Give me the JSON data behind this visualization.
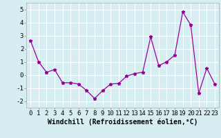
{
  "x": [
    0,
    1,
    2,
    3,
    4,
    5,
    6,
    7,
    8,
    9,
    10,
    11,
    12,
    13,
    14,
    15,
    16,
    17,
    18,
    19,
    20,
    21,
    22,
    23
  ],
  "y": [
    2.6,
    1.0,
    0.2,
    0.4,
    -0.6,
    -0.6,
    -0.7,
    -1.2,
    -1.8,
    -1.2,
    -0.7,
    -0.65,
    -0.1,
    0.1,
    0.2,
    2.9,
    0.7,
    1.0,
    1.5,
    4.8,
    3.8,
    -1.4,
    0.5,
    -0.7
  ],
  "line_color": "#990099",
  "marker": "*",
  "markersize": 3.5,
  "linewidth": 0.9,
  "xlabel": "Windchill (Refroidissement éolien,°C)",
  "xlabel_fontsize": 7,
  "xtick_labels": [
    "0",
    "1",
    "2",
    "3",
    "4",
    "5",
    "6",
    "7",
    "8",
    "9",
    "10",
    "11",
    "12",
    "13",
    "14",
    "15",
    "16",
    "17",
    "18",
    "19",
    "20",
    "21",
    "22",
    "23"
  ],
  "ytick_values": [
    -2,
    -1,
    0,
    1,
    2,
    3,
    4,
    5
  ],
  "ylim": [
    -2.5,
    5.5
  ],
  "xlim": [
    -0.5,
    23.5
  ],
  "background_color": "#d6eef2",
  "grid_color": "#ffffff",
  "tick_fontsize": 6.5,
  "border_color": "#aaaaaa"
}
